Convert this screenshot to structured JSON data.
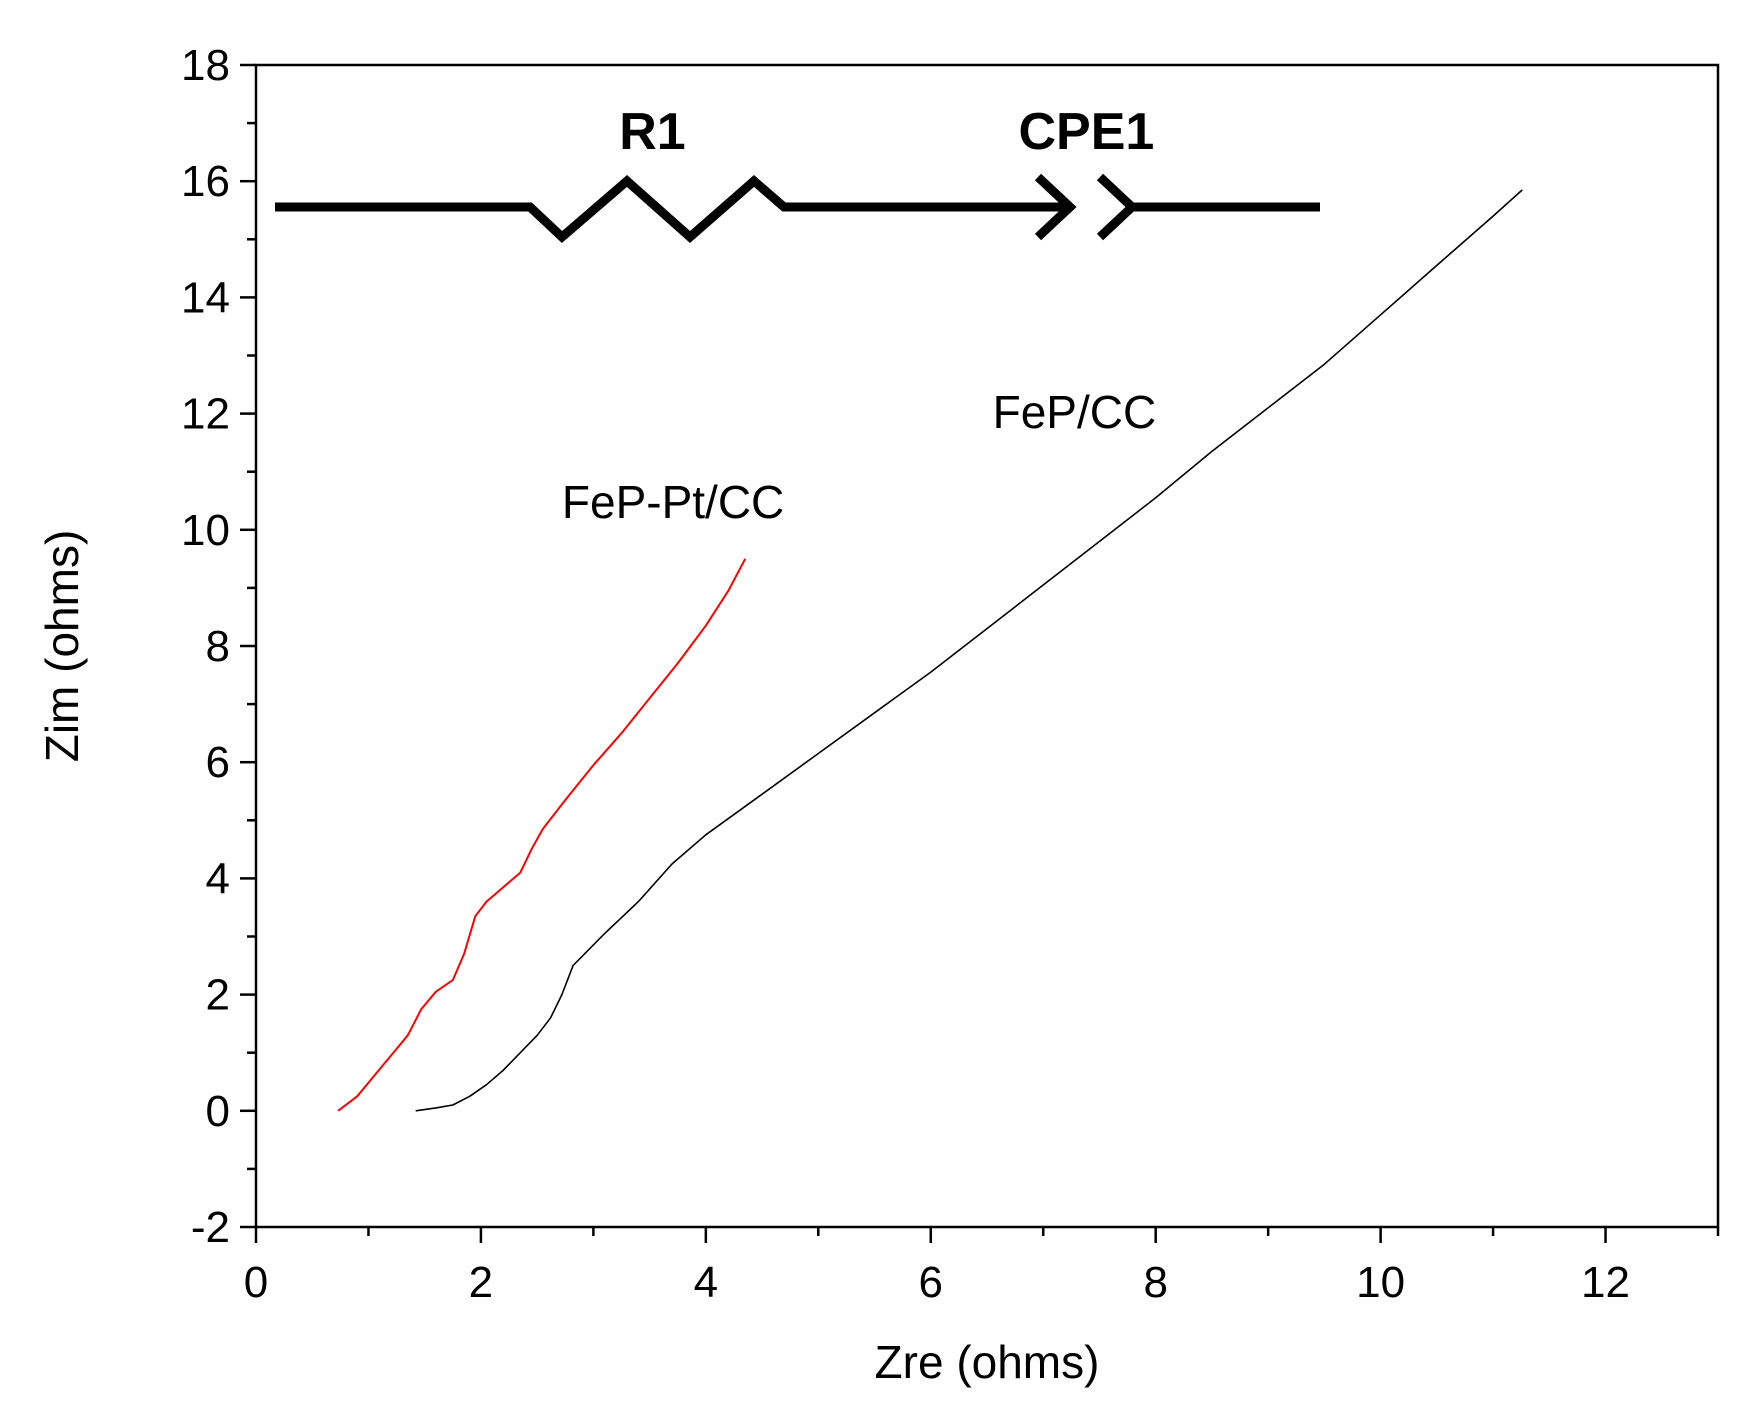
{
  "chart_data": {
    "type": "line",
    "title": "",
    "xlabel": "Zre (ohms)",
    "ylabel": "Zim (ohms)",
    "xlim": [
      0,
      13
    ],
    "ylim": [
      -2,
      18
    ],
    "x_ticks": [
      0,
      2,
      4,
      6,
      8,
      10,
      12
    ],
    "y_ticks": [
      -2,
      0,
      2,
      4,
      6,
      8,
      10,
      12,
      14,
      16,
      18
    ],
    "x_tick_labels": [
      "0",
      "2",
      "4",
      "6",
      "8",
      "10",
      "12"
    ],
    "y_tick_labels": [
      "-2",
      "0",
      "2",
      "4",
      "6",
      "8",
      "10",
      "12",
      "14",
      "16",
      "18"
    ],
    "grid": false,
    "series": [
      {
        "name": "FeP-Pt/CC",
        "color": "#ff0000",
        "points": [
          [
            0.73,
            0.0
          ],
          [
            0.9,
            0.25
          ],
          [
            1.05,
            0.6
          ],
          [
            1.2,
            0.95
          ],
          [
            1.35,
            1.3
          ],
          [
            1.47,
            1.75
          ],
          [
            1.6,
            2.05
          ],
          [
            1.75,
            2.25
          ],
          [
            1.85,
            2.7
          ],
          [
            1.95,
            3.35
          ],
          [
            2.05,
            3.6
          ],
          [
            2.2,
            3.85
          ],
          [
            2.35,
            4.1
          ],
          [
            2.45,
            4.5
          ],
          [
            2.55,
            4.85
          ],
          [
            2.75,
            5.35
          ],
          [
            3.0,
            5.95
          ],
          [
            3.25,
            6.5
          ],
          [
            3.5,
            7.1
          ],
          [
            3.75,
            7.7
          ],
          [
            4.0,
            8.35
          ],
          [
            4.2,
            8.95
          ],
          [
            4.35,
            9.5
          ]
        ]
      },
      {
        "name": "FeP/CC",
        "color": "#000000",
        "points": [
          [
            1.42,
            0.0
          ],
          [
            1.6,
            0.05
          ],
          [
            1.75,
            0.1
          ],
          [
            1.9,
            0.25
          ],
          [
            2.05,
            0.45
          ],
          [
            2.2,
            0.7
          ],
          [
            2.35,
            1.0
          ],
          [
            2.5,
            1.3
          ],
          [
            2.62,
            1.6
          ],
          [
            2.72,
            2.0
          ],
          [
            2.82,
            2.5
          ],
          [
            3.1,
            3.05
          ],
          [
            3.4,
            3.6
          ],
          [
            3.7,
            4.25
          ],
          [
            4.0,
            4.75
          ],
          [
            4.5,
            5.45
          ],
          [
            5.0,
            6.15
          ],
          [
            5.5,
            6.85
          ],
          [
            6.0,
            7.55
          ],
          [
            6.5,
            8.3
          ],
          [
            7.0,
            9.05
          ],
          [
            7.5,
            9.8
          ],
          [
            8.0,
            10.55
          ],
          [
            8.5,
            11.35
          ],
          [
            9.0,
            12.1
          ],
          [
            9.5,
            12.85
          ],
          [
            10.0,
            13.7
          ],
          [
            10.5,
            14.55
          ],
          [
            11.0,
            15.4
          ],
          [
            11.26,
            15.85
          ]
        ]
      }
    ],
    "annotations": [
      {
        "text": "FeP-Pt/CC",
        "x": 2.72,
        "y": 10.2
      },
      {
        "text": "FeP/CC",
        "x": 6.55,
        "y": 11.75
      },
      {
        "text": "R1",
        "x": 3.23,
        "y": 16.55
      },
      {
        "text": "CPE1",
        "x": 6.78,
        "y": 16.55
      }
    ]
  }
}
